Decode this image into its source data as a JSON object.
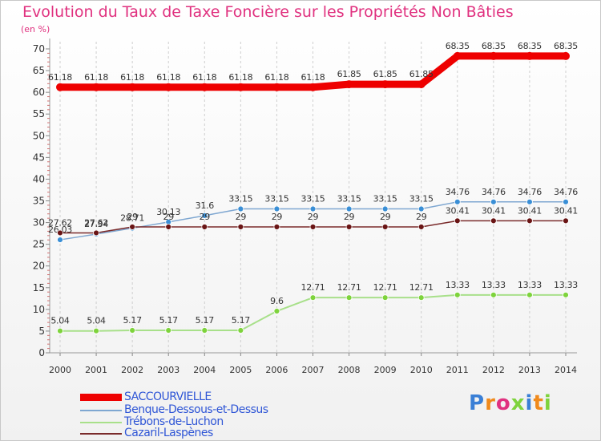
{
  "header": {
    "title": "Evolution du Taux de Taxe Foncière sur les Propriétés Non Bâties",
    "unit": "(en %)"
  },
  "logo": {
    "text": "Proxiti"
  },
  "chart_data": {
    "type": "line",
    "title": "Evolution du Taux de Taxe Foncière sur les Propriétés Non Bâties",
    "ylabel": "(en %)",
    "xlabel": "",
    "ylim": [
      0,
      70
    ],
    "yticks": [
      0,
      5,
      10,
      15,
      20,
      25,
      30,
      35,
      40,
      45,
      50,
      55,
      60,
      65,
      70
    ],
    "categories": [
      "2000",
      "2001",
      "2002",
      "2003",
      "2004",
      "2005",
      "2006",
      "2007",
      "2008",
      "2009",
      "2010",
      "2011",
      "2012",
      "2013",
      "2014"
    ],
    "grid": "vertical-dashed",
    "legend_position": "bottom-left",
    "series": [
      {
        "name": "SACCOURVIELLE",
        "color": "#ee0000",
        "stroke": 9,
        "marker": "none",
        "values": [
          61.18,
          61.18,
          61.18,
          61.18,
          61.18,
          61.18,
          61.18,
          61.18,
          61.85,
          61.85,
          61.85,
          68.35,
          68.35,
          68.35,
          68.35
        ],
        "labels": [
          "61.18",
          "61.18",
          "61.18",
          "61.18",
          "61.18",
          "61.18",
          "61.18",
          "61.18",
          "61.85",
          "61.85",
          "61.85",
          "68.35",
          "68.35",
          "68.35",
          "68.35"
        ]
      },
      {
        "name": "Benque-Dessous-et-Dessus",
        "color": "#7fa7d1",
        "marker_color": "#3a8fd6",
        "stroke": 1.5,
        "values": [
          26.03,
          27.34,
          28.71,
          30.13,
          31.6,
          33.15,
          33.15,
          33.15,
          33.15,
          33.15,
          33.15,
          34.76,
          34.76,
          34.76,
          34.76
        ],
        "labels": [
          "26.03",
          "27.34",
          "28.71",
          "30.13",
          "31.6",
          "33.15",
          "33.15",
          "33.15",
          "33.15",
          "33.15",
          "33.15",
          "34.76",
          "34.76",
          "34.76",
          "34.76"
        ]
      },
      {
        "name": "Trébons-de-Luchon",
        "color": "#a8e08a",
        "marker_color": "#7ed33c",
        "stroke": 2,
        "values": [
          5.04,
          5.04,
          5.17,
          5.17,
          5.17,
          5.17,
          9.6,
          12.71,
          12.71,
          12.71,
          12.71,
          13.33,
          13.33,
          13.33,
          13.33
        ],
        "labels": [
          "5.04",
          "5.04",
          "5.17",
          "5.17",
          "5.17",
          "5.17",
          "9.6",
          "12.71",
          "12.71",
          "12.71",
          "12.71",
          "13.33",
          "13.33",
          "13.33",
          "13.33"
        ]
      },
      {
        "name": "Cazaril-Laspènes",
        "color": "#7a2b2b",
        "marker_color": "#6a1515",
        "stroke": 1.5,
        "values": [
          27.62,
          27.62,
          29,
          29,
          29,
          29,
          29,
          29,
          29,
          29,
          29,
          30.41,
          30.41,
          30.41,
          30.41
        ],
        "labels": [
          "27.62",
          "27.62",
          "29",
          "29",
          "29",
          "29",
          "29",
          "29",
          "29",
          "29",
          "29",
          "30.41",
          "30.41",
          "30.41",
          "30.41"
        ]
      }
    ]
  }
}
